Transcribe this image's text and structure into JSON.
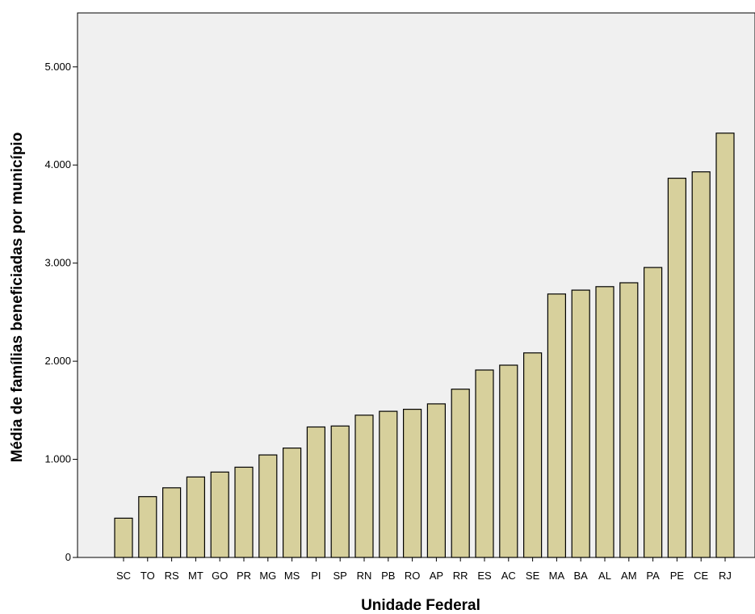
{
  "chart_data": {
    "type": "bar",
    "title": "",
    "xlabel": "Unidade Federal",
    "ylabel": "Média de famílias beneficiadas por município",
    "ylim": [
      0,
      5550
    ],
    "yticks": [
      0,
      1000,
      2000,
      3000,
      4000,
      5000
    ],
    "ytick_labels": [
      "0",
      "1.000",
      "2.000",
      "3.000",
      "4.000",
      "5.000"
    ],
    "grid": false,
    "legend": "none",
    "categories": [
      "SC",
      "TO",
      "RS",
      "MT",
      "GO",
      "PR",
      "MG",
      "MS",
      "PI",
      "SP",
      "RN",
      "PB",
      "RO",
      "AP",
      "RR",
      "ES",
      "AC",
      "SE",
      "MA",
      "BA",
      "AL",
      "AM",
      "PA",
      "PE",
      "CE",
      "RJ"
    ],
    "values": [
      400,
      620,
      710,
      820,
      870,
      920,
      1045,
      1115,
      1330,
      1340,
      1450,
      1490,
      1510,
      1565,
      1715,
      1910,
      1960,
      2085,
      2685,
      2725,
      2760,
      2800,
      2955,
      3865,
      3930,
      4325
    ],
    "colors": {
      "bar_fill": "#d7d09c",
      "bar_stroke": "#000000",
      "plot_background": "#f0f0f0",
      "axis": "#000000"
    }
  }
}
